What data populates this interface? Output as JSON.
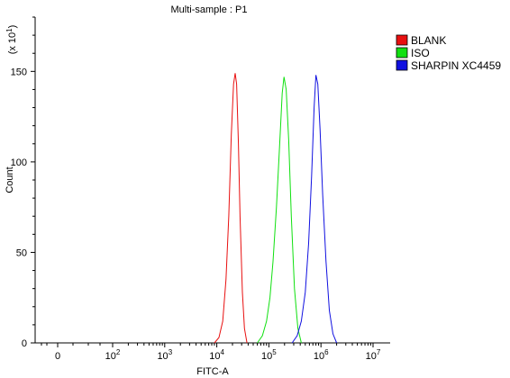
{
  "chart_data": {
    "type": "line",
    "title": "Multi-sample : P1",
    "xlabel": "FITC-A",
    "ylabel": "Count",
    "y_multiplier_label": "(x 10",
    "y_multiplier_exp": "1",
    "x_scale": "log",
    "xlim": [
      -20,
      12000000
    ],
    "ylim": [
      0,
      180
    ],
    "y_ticks": [
      0,
      50,
      100,
      150
    ],
    "x_ticks": [
      {
        "value": 0,
        "base": "0",
        "exp": ""
      },
      {
        "value": 100,
        "base": "10",
        "exp": "2"
      },
      {
        "value": 1000,
        "base": "10",
        "exp": "3"
      },
      {
        "value": 10000,
        "base": "10",
        "exp": "4"
      },
      {
        "value": 100000,
        "base": "10",
        "exp": "5"
      },
      {
        "value": 1000000,
        "base": "10",
        "exp": "6"
      },
      {
        "value": 10000000,
        "base": "10",
        "exp": "7"
      }
    ],
    "grid": false,
    "legend_position": "top-right",
    "series": [
      {
        "name": "BLANK",
        "color": "#e81010",
        "x": [
          9000,
          11000,
          13000,
          15000,
          17000,
          19000,
          21000,
          22500,
          24000,
          26000,
          28000,
          31000,
          34000,
          38000
        ],
        "y": [
          0,
          3,
          12,
          35,
          70,
          115,
          143,
          149,
          143,
          110,
          70,
          28,
          8,
          0
        ]
      },
      {
        "name": "ISO",
        "color": "#10e010",
        "x": [
          60000,
          75000,
          90000,
          105000,
          120000,
          140000,
          160000,
          180000,
          195000,
          215000,
          240000,
          270000,
          310000,
          360000,
          420000
        ],
        "y": [
          0,
          4,
          12,
          25,
          45,
          75,
          108,
          138,
          147,
          140,
          112,
          70,
          30,
          8,
          0
        ]
      },
      {
        "name": "SHARPIN XC4459",
        "color": "#1010e0",
        "x": [
          280000,
          350000,
          420000,
          500000,
          580000,
          660000,
          740000,
          800000,
          870000,
          960000,
          1080000,
          1250000,
          1450000,
          1700000,
          2000000
        ],
        "y": [
          0,
          4,
          12,
          28,
          55,
          92,
          130,
          148,
          143,
          118,
          82,
          45,
          18,
          5,
          0
        ]
      }
    ]
  }
}
